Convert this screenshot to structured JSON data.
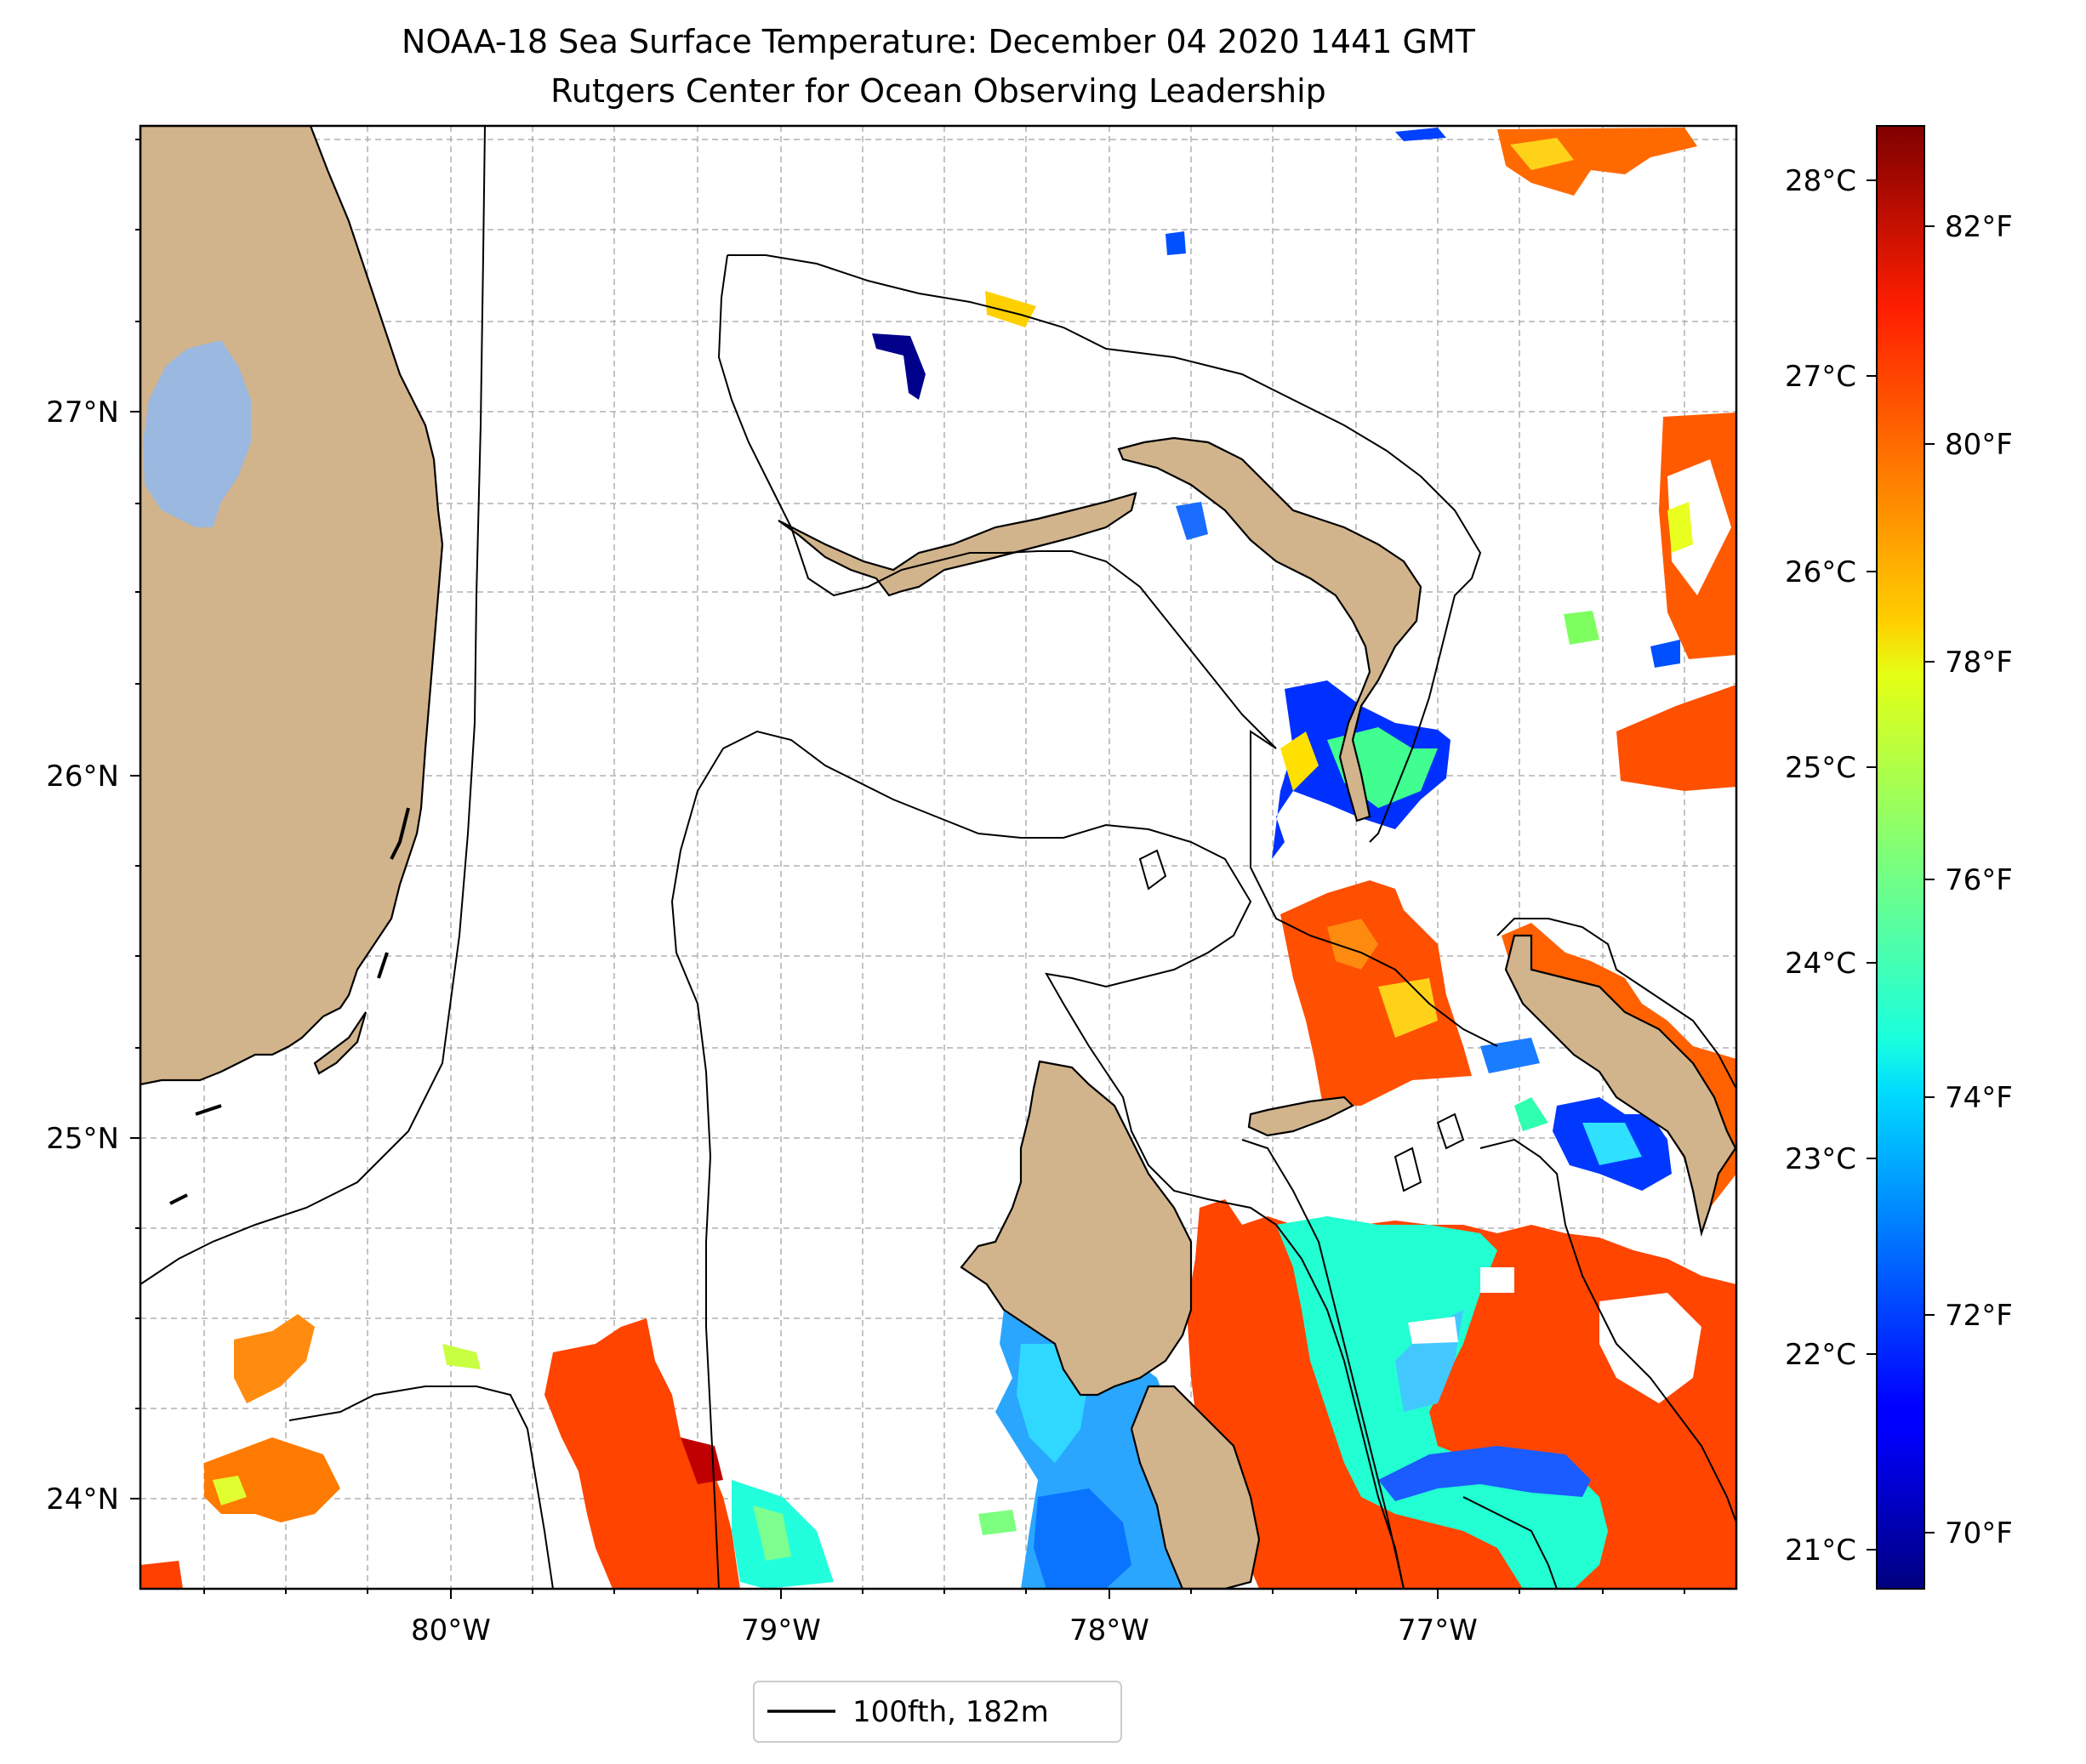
{
  "title": {
    "line1": "NOAA-18 Sea Surface Temperature: December 04 2020 1441 GMT",
    "line2": "Rutgers Center for Ocean Observing Leadership"
  },
  "map": {
    "lon_ticks": [
      "80°W",
      "79°W",
      "78°W",
      "77°W"
    ],
    "lat_ticks": [
      "27°N",
      "26°N",
      "25°N",
      "24°N"
    ],
    "gridlines": true,
    "land_color": "#d2b48c",
    "lake_color": "#9ab8e0"
  },
  "colorbar": {
    "celsius_labels": [
      "28°C",
      "27°C",
      "26°C",
      "25°C",
      "24°C",
      "23°C",
      "22°C",
      "21°C"
    ],
    "fahrenheit_labels": [
      "82°F",
      "80°F",
      "78°F",
      "76°F",
      "74°F",
      "72°F",
      "70°F"
    ],
    "colormap": "jet",
    "celsius_range": [
      20.8,
      28.3
    ]
  },
  "legend": {
    "label": "100fth, 182m",
    "placement": "bottom-center"
  }
}
